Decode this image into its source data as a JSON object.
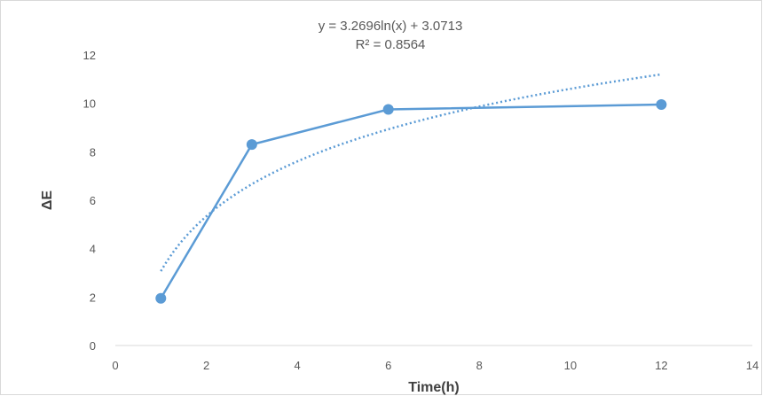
{
  "chart_data": {
    "type": "line",
    "title": "",
    "xlabel": "Time(h)",
    "ylabel": "ΔE",
    "xlim": [
      0,
      14
    ],
    "ylim": [
      0,
      12
    ],
    "x_ticks": [
      0,
      2,
      4,
      6,
      8,
      10,
      12,
      14
    ],
    "y_ticks": [
      0,
      2,
      4,
      6,
      8,
      10,
      12
    ],
    "grid": false,
    "legend": "none",
    "series": [
      {
        "x": [
          1,
          3,
          6,
          12
        ],
        "y": [
          1.95,
          8.3,
          9.75,
          9.95
        ],
        "color": "#5b9bd5",
        "markers": true
      }
    ],
    "trendline": {
      "type": "logarithmic",
      "a": 3.2696,
      "b": 3.0713,
      "x_range": [
        1,
        12
      ],
      "color": "#5b9bd5",
      "style": "dotted"
    },
    "annotations": [
      "y = 3.2696ln(x) + 3.0713",
      "R² = 0.8564"
    ]
  }
}
